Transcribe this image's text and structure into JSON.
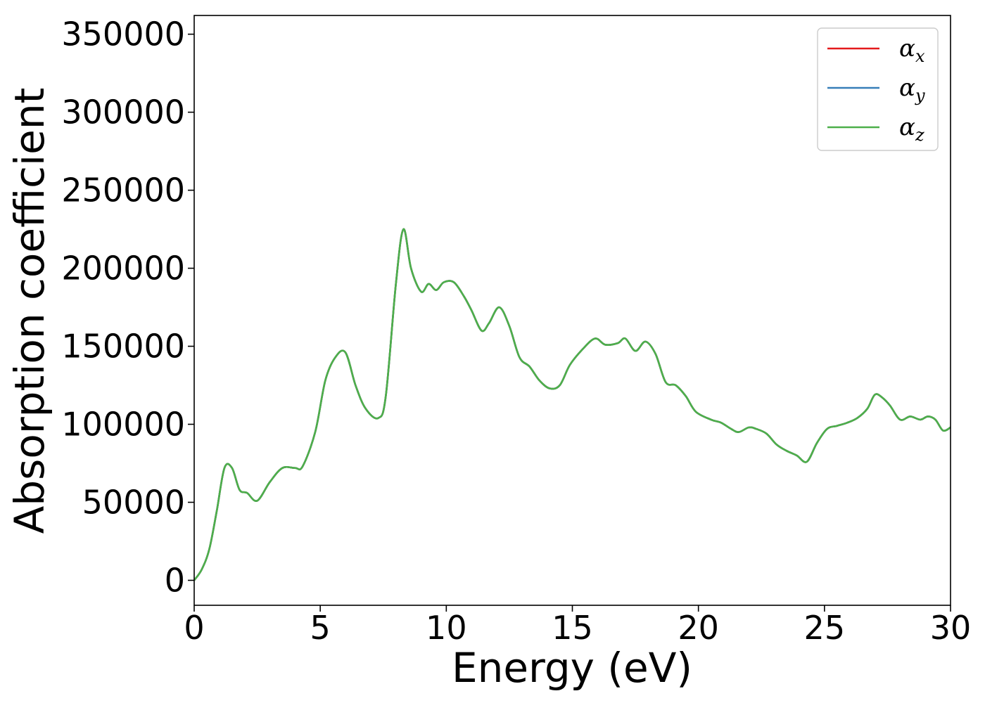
{
  "chart_data": {
    "type": "line",
    "title": "",
    "xlabel": "Energy (eV)",
    "ylabel": "Absorption coefficient",
    "xlim": [
      0,
      30
    ],
    "ylim": [
      -16000,
      362000
    ],
    "xticks": [
      "0",
      "5",
      "10",
      "15",
      "20",
      "25",
      "30"
    ],
    "yticks": [
      "0",
      "50000",
      "100000",
      "150000",
      "200000",
      "250000",
      "300000",
      "350000"
    ],
    "grid": false,
    "legend_position": "top-right",
    "series": [
      {
        "name": "α_x",
        "legend_symbol": "α",
        "legend_sub": "x",
        "color": "#e41a1c",
        "x": [
          0,
          0.3,
          0.6,
          0.9,
          1.2,
          1.5,
          1.8,
          2.1,
          2.5,
          3.0,
          3.5,
          4.0,
          4.3,
          4.8,
          5.2,
          5.6,
          6.0,
          6.4,
          6.8,
          7.3,
          7.6,
          8.0,
          8.3,
          8.6,
          9.0,
          9.3,
          9.6,
          9.9,
          10.3,
          10.7,
          11.0,
          11.4,
          11.7,
          12.1,
          12.5,
          12.9,
          13.3,
          13.7,
          14.1,
          14.5,
          14.9,
          15.4,
          15.9,
          16.3,
          16.8,
          17.1,
          17.5,
          17.9,
          18.3,
          18.7,
          19.1,
          19.5,
          19.9,
          20.5,
          20.9,
          21.3,
          21.6,
          22.0,
          22.3,
          22.7,
          23.1,
          23.5,
          23.9,
          24.3,
          24.7,
          25.1,
          25.5,
          25.9,
          26.3,
          26.7,
          27.0,
          27.3,
          27.6,
          28.0,
          28.4,
          28.8,
          29.1,
          29.4,
          29.7,
          30.0
        ],
        "values": [
          0,
          7000,
          20000,
          45000,
          72000,
          72000,
          58000,
          56000,
          51000,
          63000,
          72000,
          72000,
          73000,
          95000,
          128000,
          143000,
          146000,
          125000,
          110000,
          104000,
          118000,
          190000,
          225000,
          200000,
          185000,
          190000,
          186000,
          191000,
          191000,
          182000,
          173000,
          160000,
          165000,
          175000,
          163000,
          143000,
          137000,
          128000,
          123000,
          125000,
          138000,
          148000,
          155000,
          151000,
          152000,
          155000,
          147000,
          153000,
          145000,
          127000,
          125000,
          118000,
          108000,
          103000,
          101000,
          97000,
          95000,
          98000,
          97000,
          94000,
          87000,
          83000,
          80000,
          76000,
          88000,
          97000,
          99000,
          101000,
          104000,
          110000,
          119000,
          117000,
          112000,
          103000,
          105000,
          103000,
          105000,
          103000,
          96000,
          98000
        ]
      },
      {
        "name": "α_y",
        "legend_symbol": "α",
        "legend_sub": "y",
        "color": "#377eb8",
        "x": [
          0,
          0.3,
          0.6,
          0.9,
          1.2,
          1.5,
          1.8,
          2.1,
          2.5,
          3.0,
          3.5,
          4.0,
          4.3,
          4.8,
          5.2,
          5.6,
          6.0,
          6.4,
          6.8,
          7.3,
          7.6,
          8.0,
          8.3,
          8.6,
          9.0,
          9.3,
          9.6,
          9.9,
          10.3,
          10.7,
          11.0,
          11.4,
          11.7,
          12.1,
          12.5,
          12.9,
          13.3,
          13.7,
          14.1,
          14.5,
          14.9,
          15.4,
          15.9,
          16.3,
          16.8,
          17.1,
          17.5,
          17.9,
          18.3,
          18.7,
          19.1,
          19.5,
          19.9,
          20.5,
          20.9,
          21.3,
          21.6,
          22.0,
          22.3,
          22.7,
          23.1,
          23.5,
          23.9,
          24.3,
          24.7,
          25.1,
          25.5,
          25.9,
          26.3,
          26.7,
          27.0,
          27.3,
          27.6,
          28.0,
          28.4,
          28.8,
          29.1,
          29.4,
          29.7,
          30.0
        ],
        "values": [
          0,
          7000,
          20000,
          45000,
          72000,
          72000,
          58000,
          56000,
          51000,
          63000,
          72000,
          72000,
          73000,
          95000,
          128000,
          143000,
          146000,
          125000,
          110000,
          104000,
          118000,
          190000,
          225000,
          200000,
          185000,
          190000,
          186000,
          191000,
          191000,
          182000,
          173000,
          160000,
          165000,
          175000,
          163000,
          143000,
          137000,
          128000,
          123000,
          125000,
          138000,
          148000,
          155000,
          151000,
          152000,
          155000,
          147000,
          153000,
          145000,
          127000,
          125000,
          118000,
          108000,
          103000,
          101000,
          97000,
          95000,
          98000,
          97000,
          94000,
          87000,
          83000,
          80000,
          76000,
          88000,
          97000,
          99000,
          101000,
          104000,
          110000,
          119000,
          117000,
          112000,
          103000,
          105000,
          103000,
          105000,
          103000,
          96000,
          98000
        ]
      },
      {
        "name": "α_z",
        "legend_symbol": "α",
        "legend_sub": "z",
        "color": "#4daf4a",
        "x": [
          0,
          0.3,
          0.6,
          0.9,
          1.2,
          1.5,
          1.8,
          2.1,
          2.5,
          3.0,
          3.5,
          4.0,
          4.3,
          4.8,
          5.2,
          5.6,
          6.0,
          6.4,
          6.8,
          7.3,
          7.6,
          8.0,
          8.3,
          8.6,
          9.0,
          9.3,
          9.6,
          9.9,
          10.3,
          10.7,
          11.0,
          11.4,
          11.7,
          12.1,
          12.5,
          12.9,
          13.3,
          13.7,
          14.1,
          14.5,
          14.9,
          15.4,
          15.9,
          16.3,
          16.8,
          17.1,
          17.5,
          17.9,
          18.3,
          18.7,
          19.1,
          19.5,
          19.9,
          20.5,
          20.9,
          21.3,
          21.6,
          22.0,
          22.3,
          22.7,
          23.1,
          23.5,
          23.9,
          24.3,
          24.7,
          25.1,
          25.5,
          25.9,
          26.3,
          26.7,
          27.0,
          27.3,
          27.6,
          28.0,
          28.4,
          28.8,
          29.1,
          29.4,
          29.7,
          30.0
        ],
        "values": [
          0,
          7000,
          20000,
          45000,
          72000,
          72000,
          58000,
          56000,
          51000,
          63000,
          72000,
          72000,
          73000,
          95000,
          128000,
          143000,
          146000,
          125000,
          110000,
          104000,
          118000,
          190000,
          225000,
          200000,
          185000,
          190000,
          186000,
          191000,
          191000,
          182000,
          173000,
          160000,
          165000,
          175000,
          163000,
          143000,
          137000,
          128000,
          123000,
          125000,
          138000,
          148000,
          155000,
          151000,
          152000,
          155000,
          147000,
          153000,
          145000,
          127000,
          125000,
          118000,
          108000,
          103000,
          101000,
          97000,
          95000,
          98000,
          97000,
          94000,
          87000,
          83000,
          80000,
          76000,
          88000,
          97000,
          99000,
          101000,
          104000,
          110000,
          119000,
          117000,
          112000,
          103000,
          105000,
          103000,
          105000,
          103000,
          96000,
          98000
        ]
      }
    ]
  }
}
